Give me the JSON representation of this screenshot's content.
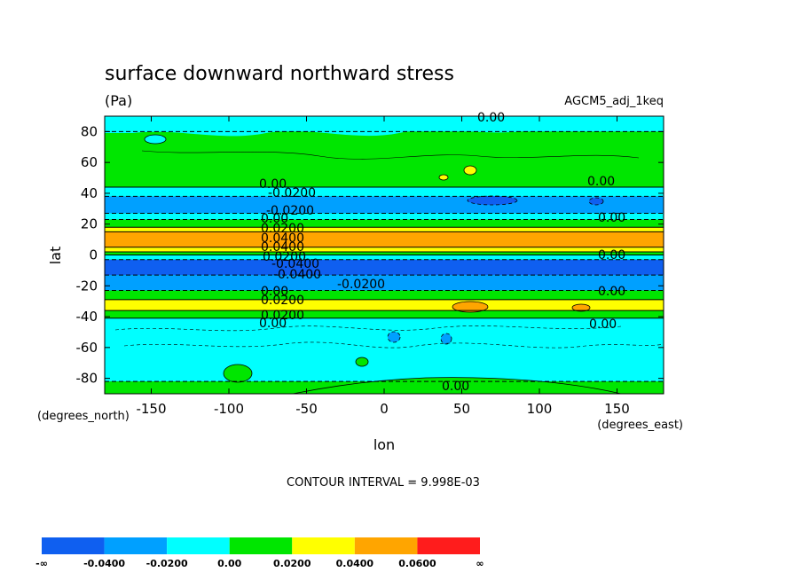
{
  "chart_data": {
    "type": "heatmap",
    "title": "surface downward northward stress",
    "units": "(Pa)",
    "dataset": "AGCM5_adj_1keq",
    "xlabel": "lon",
    "ylabel": "lat",
    "x_units": "(degrees_east)",
    "y_units": "(degrees_north)",
    "xlim": [
      -180,
      180
    ],
    "ylim": [
      -90,
      90
    ],
    "xticks": [
      -150,
      -100,
      -50,
      0,
      50,
      100,
      150
    ],
    "yticks": [
      80,
      60,
      40,
      20,
      0,
      -20,
      -40,
      -60,
      -80
    ],
    "footnote": "CONTOUR INTERVAL = 9.998E-03",
    "levels": [
      -0.04,
      -0.02,
      0.0,
      0.02,
      0.04,
      0.06
    ],
    "colorbar": {
      "labels": [
        "-∞",
        "-0.0400",
        "-0.0200",
        "0.00",
        "0.0200",
        "0.0400",
        "0.0600",
        "∞"
      ],
      "colors": [
        "#0f5ff0",
        "#00a0ff",
        "#00ffff",
        "#00e600",
        "#ffff00",
        "#ffa500",
        "#ff1c1c"
      ]
    },
    "zonal_bands": [
      {
        "lat": [
          80,
          90
        ],
        "range": "-0.02 to 0.00"
      },
      {
        "lat": [
          44,
          80
        ],
        "range": "0.00 to 0.02"
      },
      {
        "lat": [
          38,
          44
        ],
        "range": "-0.02 to 0.00"
      },
      {
        "lat": [
          27,
          38
        ],
        "range": "-0.04 to -0.02"
      },
      {
        "lat": [
          23,
          27
        ],
        "range": "-0.02 to 0.00"
      },
      {
        "lat": [
          18,
          23
        ],
        "range": "0.00 to 0.02"
      },
      {
        "lat": [
          15,
          18
        ],
        "range": "0.02 to 0.04"
      },
      {
        "lat": [
          5,
          15
        ],
        "range": "0.04 to 0.06"
      },
      {
        "lat": [
          2,
          5
        ],
        "range": "0.02 to 0.04"
      },
      {
        "lat": [
          0,
          2
        ],
        "range": "0.00 to 0.02"
      },
      {
        "lat": [
          -3,
          0
        ],
        "range": "-0.02 to 0.00"
      },
      {
        "lat": [
          -13,
          -3
        ],
        "range": "< -0.04"
      },
      {
        "lat": [
          -23,
          -13
        ],
        "range": "-0.04 to -0.02"
      },
      {
        "lat": [
          -29,
          -23
        ],
        "range": "0.00 to 0.02"
      },
      {
        "lat": [
          -36,
          -29
        ],
        "range": "0.02 to 0.04"
      },
      {
        "lat": [
          -41,
          -36
        ],
        "range": "0.00 to 0.02"
      },
      {
        "lat": [
          -82,
          -41
        ],
        "range": "-0.02 to 0.00"
      },
      {
        "lat": [
          -90,
          -82
        ],
        "range": "0.00 to 0.02"
      }
    ],
    "contour_labels": [
      "0.00",
      "-0.0200",
      "-0.0200",
      "0.00",
      "0.0200",
      "0.0400",
      "0.0400",
      "0.0200",
      "-0.0400",
      "-0.0400",
      "-0.0200",
      "0.00",
      "0.0200",
      "0.0200",
      "0.00",
      "0.00",
      "0.00",
      "0.00",
      "0.00",
      "0.00",
      "0.00",
      "0.00"
    ]
  }
}
